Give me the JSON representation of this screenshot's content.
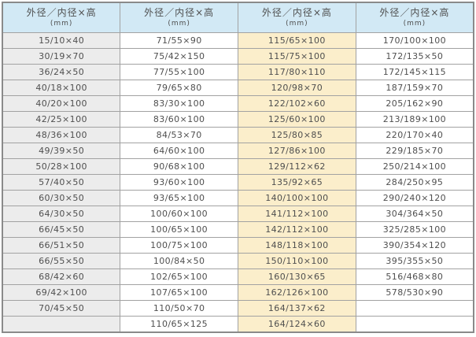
{
  "colors": {
    "header_bg": "#d2e9f5",
    "column_gray_bg": "#ececec",
    "column_cream_bg": "#fbeecb",
    "column_white_bg": "#ffffff",
    "border_outer": "#8a8a8a",
    "border_inner": "#a2a2a2",
    "text": "#4f4f4f"
  },
  "table": {
    "header": {
      "title": "外径／内径×高",
      "unit": "(mm)"
    },
    "row_count": 19,
    "columns": [
      {
        "bg": "#ececec",
        "values": [
          "15/10×40",
          "30/19×70",
          "36/24×50",
          "40/18×100",
          "40/20×100",
          "42/25×100",
          "48/36×100",
          "49/39×50",
          "50/28×100",
          "57/40×50",
          "60/30×50",
          "64/30×50",
          "66/45×50",
          "66/51×50",
          "66/55×50",
          "68/42×60",
          "69/42×100",
          "70/45×50",
          ""
        ]
      },
      {
        "bg": "#ffffff",
        "values": [
          "71/55×90",
          "75/42×150",
          "77/55×100",
          "79/65×80",
          "83/30×100",
          "83/60×100",
          "84/53×70",
          "64/60×100",
          "90/68×100",
          "93/60×100",
          "93/65×100",
          "100/60×100",
          "100/65×100",
          "100/75×100",
          "100/84×50",
          "102/65×100",
          "107/65×100",
          "110/50×70",
          "110/65×125"
        ]
      },
      {
        "bg": "#fbeecb",
        "values": [
          "115/65×100",
          "115/75×100",
          "117/80×110",
          "120/98×70",
          "122/102×60",
          "125/60×100",
          "125/80×85",
          "127/86×100",
          "129/112×62",
          "135/92×65",
          "140/100×100",
          "141/112×100",
          "142/112×100",
          "148/118×100",
          "150/110×100",
          "160/130×65",
          "162/126×100",
          "164/137×62",
          "164/124×60"
        ]
      },
      {
        "bg": "#ffffff",
        "values": [
          "170/100×100",
          "172/135×50",
          "172/145×115",
          "187/159×70",
          "205/162×90",
          "213/189×100",
          "220/170×40",
          "229/185×70",
          "250/214×100",
          "284/250×95",
          "290/240×120",
          "304/364×50",
          "325/285×100",
          "390/354×120",
          "395/355×50",
          "516/468×80",
          "578/530×90",
          "",
          ""
        ]
      }
    ]
  }
}
